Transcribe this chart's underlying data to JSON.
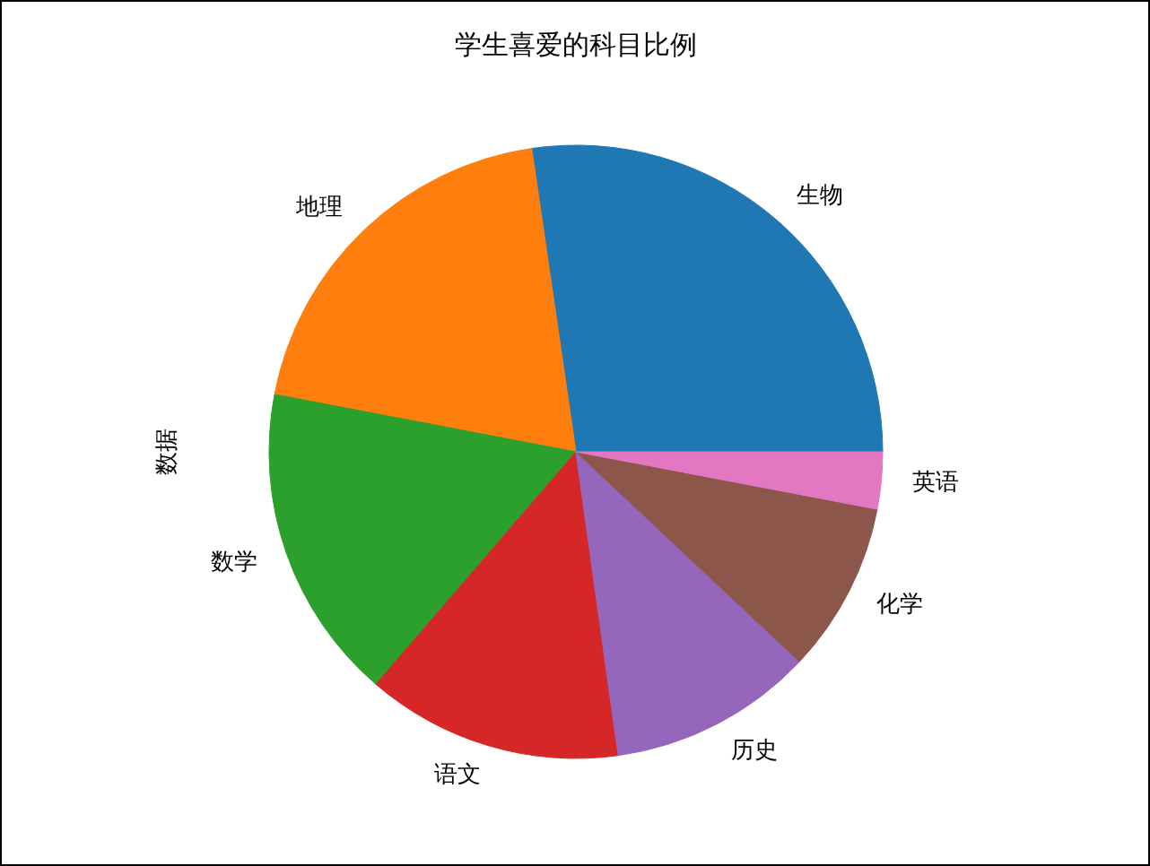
{
  "chart_data": {
    "type": "pie",
    "title": "学生喜爱的科目比例",
    "ylabel": "数据",
    "categories": [
      "生物",
      "地理",
      "数学",
      "语文",
      "历史",
      "化学",
      "英语"
    ],
    "values": [
      27.3,
      19.7,
      16.7,
      13.5,
      10.8,
      9.0,
      3.0
    ],
    "colors": [
      "#1f77b4",
      "#ff7f0e",
      "#2ca02c",
      "#d62728",
      "#9467bd",
      "#8c564b",
      "#e377c2"
    ],
    "legend": false
  }
}
